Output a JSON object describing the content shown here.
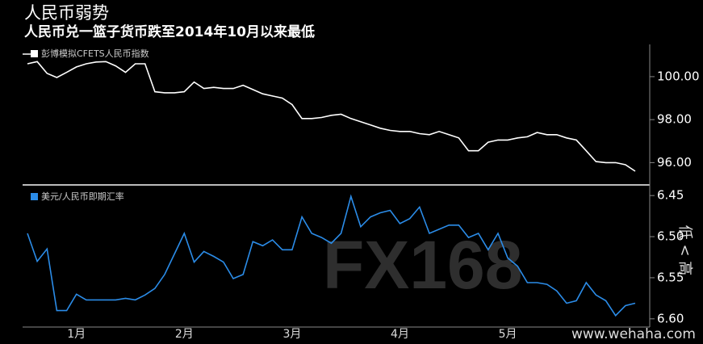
{
  "chart_data": {
    "type": "line",
    "title": "人民币弱势",
    "subtitle": "人民币兑一篮子货币跌至2014年10月以来最低",
    "categories": [
      null,
      null,
      null,
      null,
      null,
      "1月",
      null,
      null,
      null,
      null,
      null,
      null,
      null,
      null,
      null,
      null,
      "2月",
      null,
      null,
      null,
      null,
      null,
      null,
      null,
      null,
      null,
      null,
      "3月",
      null,
      null,
      null,
      null,
      null,
      null,
      null,
      null,
      null,
      null,
      "4月",
      null,
      null,
      null,
      null,
      null,
      null,
      null,
      null,
      null,
      null,
      "5月",
      null,
      null,
      null,
      null,
      null,
      null,
      null,
      null,
      null,
      null,
      null,
      null,
      null
    ],
    "panels": [
      {
        "ylim": [
          95,
          101.5
        ],
        "yticks": [
          {
            "value": 100,
            "label": "100.00"
          },
          {
            "value": 98,
            "label": "98.00"
          },
          {
            "value": 96,
            "label": "96.00"
          }
        ],
        "series": [
          {
            "name": "彭博模拟CFETS人民币指数",
            "color": "#ffffff",
            "values": [
              100.6,
              100.7,
              100.15,
              99.96,
              100.2,
              100.45,
              100.6,
              100.68,
              100.7,
              100.5,
              100.2,
              100.6,
              100.6,
              99.3,
              99.25,
              99.25,
              99.3,
              99.75,
              99.45,
              99.5,
              99.45,
              99.45,
              99.6,
              99.4,
              99.2,
              99.1,
              99.0,
              98.7,
              98.05,
              98.05,
              98.1,
              98.2,
              98.25,
              98.05,
              97.9,
              97.75,
              97.6,
              97.5,
              97.45,
              97.45,
              97.35,
              97.3,
              97.45,
              97.3,
              97.15,
              96.55,
              96.55,
              96.95,
              97.05,
              97.05,
              97.15,
              97.2,
              97.4,
              97.3,
              97.3,
              97.15,
              97.05,
              96.55,
              96.05,
              96.0,
              96.0,
              95.9,
              95.6
            ]
          }
        ]
      },
      {
        "ylim": [
          6.44,
          6.61
        ],
        "inverted": true,
        "yticks": [
          6.45,
          {
            "value": 6.5,
            "label": "6.50"
          },
          6.55,
          {
            "value": 6.6,
            "label": "6.60"
          }
        ],
        "series": [
          {
            "name": "美元/人民币即期汇率",
            "color": "#2b8ce8",
            "values": [
              6.496,
              6.53,
              6.515,
              6.59,
              6.59,
              6.57,
              6.577,
              6.577,
              6.577,
              6.577,
              6.575,
              6.577,
              6.571,
              6.563,
              6.546,
              6.521,
              6.496,
              6.531,
              6.518,
              6.524,
              6.531,
              6.551,
              6.546,
              6.506,
              6.511,
              6.504,
              6.516,
              6.516,
              6.476,
              6.496,
              6.501,
              6.508,
              6.496,
              6.451,
              6.488,
              6.476,
              6.471,
              6.468,
              6.484,
              6.478,
              6.464,
              6.496,
              6.491,
              6.486,
              6.486,
              6.501,
              6.496,
              6.516,
              6.496,
              6.526,
              6.536,
              6.556,
              6.556,
              6.558,
              6.566,
              6.581,
              6.578,
              6.556,
              6.571,
              6.578,
              6.596,
              6.584,
              6.581
            ]
          }
        ],
        "annotation": "低 < 高"
      }
    ],
    "watermark": "FX168",
    "source": "www.wehaha.com"
  }
}
